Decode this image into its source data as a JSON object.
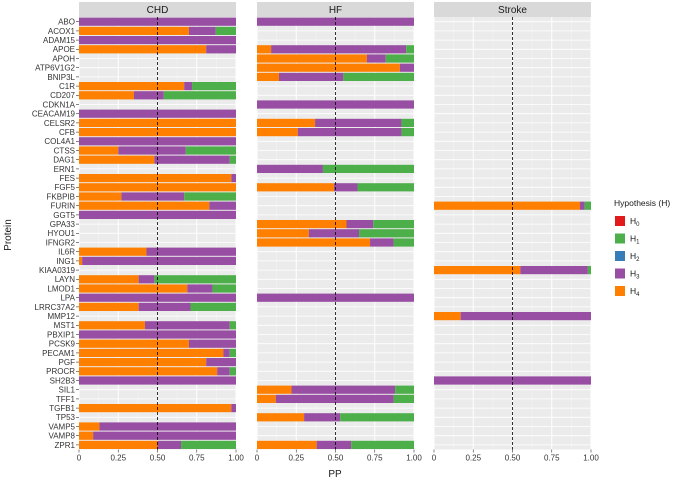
{
  "chart_data": {
    "type": "bar",
    "orientation": "horizontal",
    "stacked": true,
    "xlabel": "PP",
    "ylabel": "Protein",
    "xlim": [
      0,
      1
    ],
    "x_ticks": [
      "0",
      "0.25",
      "0.50",
      "0.75",
      "1.00"
    ],
    "x_tick_values": [
      0,
      0.25,
      0.5,
      0.75,
      1.0
    ],
    "reference_line": 0.5,
    "stack_order": [
      "H4",
      "H3",
      "H1",
      "H2",
      "H0"
    ],
    "colors": {
      "H0": "#e31a1c",
      "H1": "#4daf4a",
      "H2": "#377eb8",
      "H3": "#984ea3",
      "H4": "#ff7f00"
    },
    "legend": {
      "title": "Hypothesis (H)",
      "entries": [
        {
          "key": "H0",
          "base": "H",
          "sub": "0"
        },
        {
          "key": "H1",
          "base": "H",
          "sub": "1"
        },
        {
          "key": "H2",
          "base": "H",
          "sub": "2"
        },
        {
          "key": "H3",
          "base": "H",
          "sub": "3"
        },
        {
          "key": "H4",
          "base": "H",
          "sub": "4"
        }
      ]
    },
    "categories": [
      "ABO",
      "ACOX1",
      "ADAM15",
      "APOE",
      "APOH",
      "ATP6V1G2",
      "BNIP3L",
      "C1R",
      "CD207",
      "CDKN1A",
      "CEACAM19",
      "CELSR2",
      "CFB",
      "COL4A1",
      "CTSS",
      "DAG1",
      "ERN1",
      "FES",
      "FGF5",
      "FKBPIB",
      "FURIN",
      "GGT5",
      "GPA33",
      "HYOU1",
      "IFNGR2",
      "IL6R",
      "ING1",
      "KIAA0319",
      "LAYN",
      "LMOD1",
      "LPA",
      "LRRC37A2",
      "MMP12",
      "MST1",
      "PBXIP1",
      "PCSK9",
      "PECAM1",
      "PGF",
      "PROCR",
      "SH2B3",
      "SIL1",
      "TFF1",
      "TGFB1",
      "TP53",
      "VAMP5",
      "VAMP8",
      "ZPR1"
    ],
    "panels": [
      {
        "name": "CHD",
        "bars": {
          "ABO": {
            "H4": 0,
            "H3": 1.0,
            "H1": 0
          },
          "ACOX1": {
            "H4": 0.7,
            "H3": 0.17,
            "H1": 0.13
          },
          "ADAM15": {
            "H4": 0,
            "H3": 1.0,
            "H1": 0
          },
          "APOE": {
            "H4": 0.81,
            "H3": 0.19,
            "H1": 0
          },
          "C1R": {
            "H4": 0.67,
            "H3": 0.05,
            "H1": 0.28
          },
          "CD207": {
            "H4": 0.35,
            "H3": 0.19,
            "H1": 0.46
          },
          "CEACAM19": {
            "H4": 0,
            "H3": 1.0,
            "H1": 0
          },
          "CELSR2": {
            "H4": 1.0,
            "H3": 0,
            "H1": 0
          },
          "CFB": {
            "H4": 1.0,
            "H3": 0,
            "H1": 0
          },
          "COL4A1": {
            "H4": 0,
            "H3": 1.0,
            "H1": 0
          },
          "CTSS": {
            "H4": 0.25,
            "H3": 0.43,
            "H1": 0.32
          },
          "DAG1": {
            "H4": 0.48,
            "H3": 0.48,
            "H1": 0.04
          },
          "FES": {
            "H4": 0.97,
            "H3": 0.03,
            "H1": 0
          },
          "FGF5": {
            "H4": 1.0,
            "H3": 0,
            "H1": 0
          },
          "FKBPIB": {
            "H4": 0.27,
            "H3": 0.4,
            "H1": 0.33
          },
          "FURIN": {
            "H4": 0.83,
            "H3": 0.17,
            "H1": 0
          },
          "GGT5": {
            "H4": 0,
            "H3": 1.0,
            "H1": 0
          },
          "IL6R": {
            "H4": 0.43,
            "H3": 0.57,
            "H1": 0
          },
          "ING1": {
            "H4": 0.02,
            "H3": 0.98,
            "H1": 0
          },
          "LAYN": {
            "H4": 0.38,
            "H3": 0.1,
            "H1": 0.52
          },
          "LMOD1": {
            "H4": 0.69,
            "H3": 0.16,
            "H1": 0.15
          },
          "LPA": {
            "H4": 0,
            "H3": 1.0,
            "H1": 0
          },
          "LRRC37A2": {
            "H4": 0.38,
            "H3": 0.33,
            "H1": 0.29
          },
          "MST1": {
            "H4": 0.42,
            "H3": 0.54,
            "H1": 0.04
          },
          "PBXIP1": {
            "H4": 0,
            "H3": 1.0,
            "H1": 0
          },
          "PCSK9": {
            "H4": 0.7,
            "H3": 0.3,
            "H1": 0
          },
          "PECAM1": {
            "H4": 0.92,
            "H3": 0.04,
            "H1": 0.04
          },
          "PGF": {
            "H4": 0.81,
            "H3": 0.19,
            "H1": 0
          },
          "PROCR": {
            "H4": 0.88,
            "H3": 0.08,
            "H1": 0.04
          },
          "SH2B3": {
            "H4": 0,
            "H3": 1.0,
            "H1": 0
          },
          "TGFB1": {
            "H4": 0.97,
            "H3": 0.03,
            "H1": 0
          },
          "VAMP5": {
            "H4": 0.13,
            "H3": 0.87,
            "H1": 0
          },
          "VAMP8": {
            "H4": 0.09,
            "H3": 0.91,
            "H1": 0
          },
          "ZPR1": {
            "H4": 0.5,
            "H3": 0.15,
            "H1": 0.35
          }
        }
      },
      {
        "name": "HF",
        "bars": {
          "ABO": {
            "H4": 0,
            "H3": 1.0,
            "H1": 0
          },
          "APOE": {
            "H4": 0.09,
            "H3": 0.86,
            "H1": 0.05
          },
          "APOH": {
            "H4": 0.7,
            "H3": 0.12,
            "H1": 0.18
          },
          "ATP6V1G2": {
            "H4": 0.91,
            "H3": 0.09,
            "H1": 0
          },
          "BNIP3L": {
            "H4": 0.14,
            "H3": 0.41,
            "H1": 0.45
          },
          "CDKN1A": {
            "H4": 0,
            "H3": 1.0,
            "H1": 0
          },
          "CELSR2": {
            "H4": 0.37,
            "H3": 0.55,
            "H1": 0.08
          },
          "CFB": {
            "H4": 0.26,
            "H3": 0.66,
            "H1": 0.08
          },
          "ERN1": {
            "H4": 0,
            "H3": 0.42,
            "H1": 0.58
          },
          "FGF5": {
            "H4": 0.49,
            "H3": 0.15,
            "H1": 0.36
          },
          "GPA33": {
            "H4": 0.57,
            "H3": 0.17,
            "H1": 0.26
          },
          "HYOU1": {
            "H4": 0.33,
            "H3": 0.32,
            "H1": 0.35
          },
          "IFNGR2": {
            "H4": 0.72,
            "H3": 0.15,
            "H1": 0.13
          },
          "LPA": {
            "H4": 0,
            "H3": 1.0,
            "H1": 0
          },
          "SIL1": {
            "H4": 0.22,
            "H3": 0.66,
            "H1": 0.12
          },
          "TFF1": {
            "H4": 0.12,
            "H3": 0.75,
            "H1": 0.13
          },
          "TP53": {
            "H4": 0.3,
            "H3": 0.23,
            "H1": 0.47
          },
          "ZPR1": {
            "H4": 0.38,
            "H3": 0.22,
            "H1": 0.4
          }
        }
      },
      {
        "name": "Stroke",
        "bars": {
          "FURIN": {
            "H4": 0.93,
            "H3": 0.03,
            "H1": 0.04
          },
          "KIAA0319": {
            "H4": 0.55,
            "H3": 0.43,
            "H1": 0.02
          },
          "MMP12": {
            "H4": 0.17,
            "H3": 0.83,
            "H1": 0
          },
          "SH2B3": {
            "H4": 0,
            "H3": 1.0,
            "H1": 0
          }
        }
      }
    ]
  }
}
